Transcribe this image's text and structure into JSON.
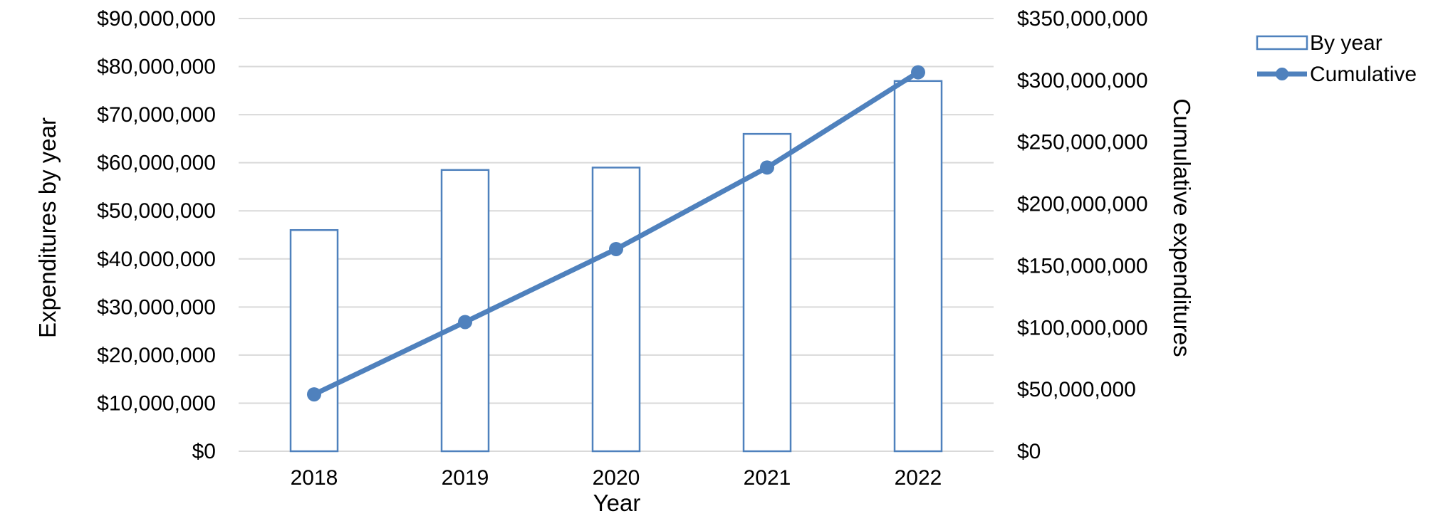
{
  "chart_data": {
    "type": "bar",
    "categories": [
      "2018",
      "2019",
      "2020",
      "2021",
      "2022"
    ],
    "series": [
      {
        "name": "By year",
        "type": "bar",
        "axis": "left",
        "values": [
          46000000,
          58500000,
          59000000,
          66000000,
          77000000
        ]
      },
      {
        "name": "Cumulative",
        "type": "line",
        "axis": "right",
        "values": [
          46000000,
          104500000,
          163500000,
          229500000,
          306500000
        ]
      }
    ],
    "xlabel": "Year",
    "ylabel": "Expenditures by year",
    "y2label": "Cumulative expenditures",
    "ylim": [
      0,
      90000000
    ],
    "y2lim": [
      0,
      350000000
    ],
    "yticks": [
      "$0",
      "$10,000,000",
      "$20,000,000",
      "$30,000,000",
      "$40,000,000",
      "$50,000,000",
      "$60,000,000",
      "$70,000,000",
      "$80,000,000",
      "$90,000,000"
    ],
    "y2ticks": [
      "$0",
      "$50,000,000",
      "$100,000,000",
      "$150,000,000",
      "$200,000,000",
      "$250,000,000",
      "$300,000,000",
      "$350,000,000"
    ],
    "grid": true,
    "legend": "top-right",
    "colors": {
      "bar_stroke": "#4f81bd",
      "line": "#4f81bd",
      "grid": "#d9d9d9"
    }
  }
}
